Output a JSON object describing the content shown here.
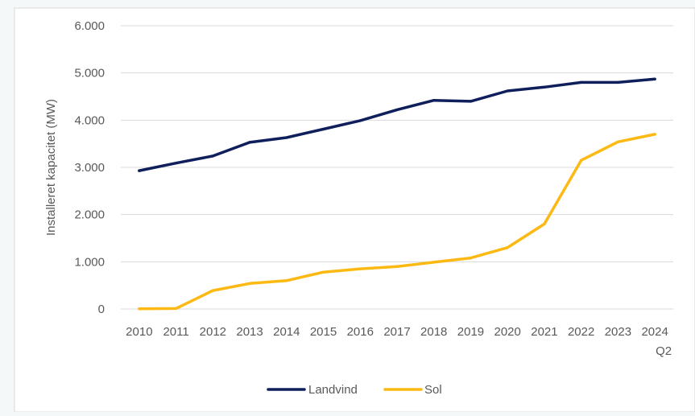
{
  "chart_data": {
    "type": "line",
    "categories": [
      "2010",
      "2011",
      "2012",
      "2013",
      "2014",
      "2015",
      "2016",
      "2017",
      "2018",
      "2019",
      "2020",
      "2021",
      "2022",
      "2023",
      "2024"
    ],
    "category_sublabels": [
      "",
      "",
      "",
      "",
      "",
      "",
      "",
      "",
      "",
      "",
      "",
      "",
      "",
      "",
      "Q2"
    ],
    "ylabel": "Installeret kapacitet (MW)",
    "ylim": [
      0,
      6000
    ],
    "yticks": [
      0,
      1000,
      2000,
      3000,
      4000,
      5000,
      6000
    ],
    "ytick_labels": [
      "0",
      "1.000",
      "2.000",
      "3.000",
      "4.000",
      "5.000",
      "6.000"
    ],
    "grid": true,
    "legend_position": "bottom",
    "series": [
      {
        "name": "Landvind",
        "color": "#0f1f5c",
        "values": [
          2930,
          3090,
          3240,
          3530,
          3630,
          3810,
          3990,
          4220,
          4420,
          4400,
          4620,
          4700,
          4800,
          4800,
          4870
        ]
      },
      {
        "name": "Sol",
        "color": "#fdb913",
        "values": [
          5,
          10,
          390,
          540,
          600,
          780,
          850,
          900,
          990,
          1080,
          1300,
          1800,
          3150,
          3540,
          3700
        ]
      }
    ]
  }
}
